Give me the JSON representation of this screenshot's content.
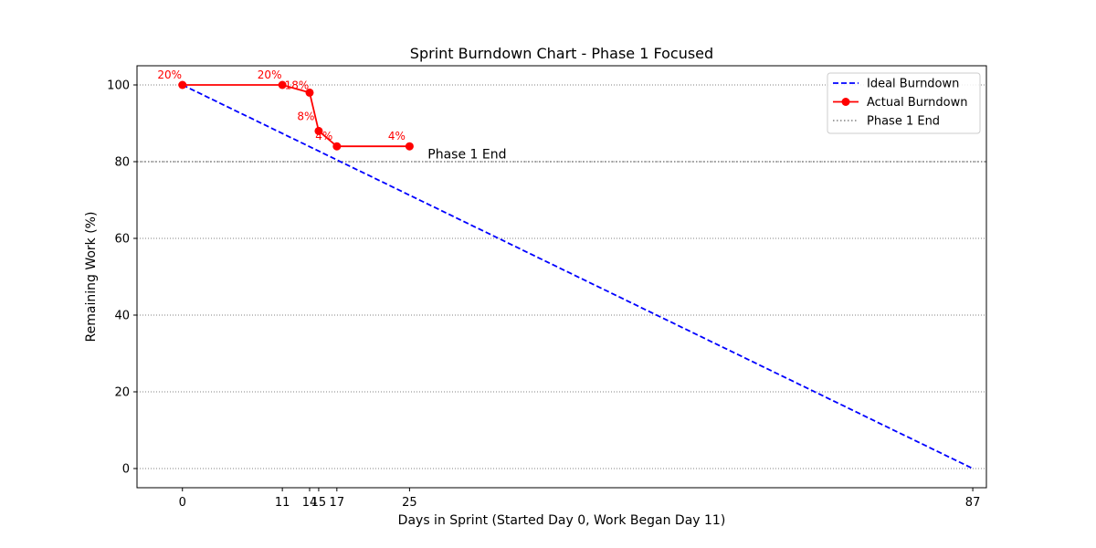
{
  "chart_data": {
    "type": "line",
    "title": "Sprint Burndown Chart - Phase 1 Focused",
    "xlabel": "Days in Sprint (Started Day 0, Work Began Day 11)",
    "ylabel": "Remaining Work (%)",
    "xlim": [
      -5,
      88.5
    ],
    "ylim": [
      -5,
      105
    ],
    "x_ticks": [
      0,
      11,
      14,
      15,
      17,
      25,
      87
    ],
    "y_ticks": [
      0,
      20,
      40,
      60,
      80,
      100
    ],
    "grid": "y-dotted",
    "legend_position": "top-right",
    "series": [
      {
        "name": "Ideal Burndown",
        "style": "dashed",
        "color": "#0000ff",
        "x": [
          0,
          87
        ],
        "y": [
          100,
          0
        ]
      },
      {
        "name": "Actual Burndown",
        "style": "solid-markers",
        "color": "#ff0000",
        "x": [
          0,
          11,
          14,
          15,
          17,
          25
        ],
        "y": [
          100,
          100,
          98,
          88,
          84,
          84
        ],
        "point_labels": [
          "20%",
          "20%",
          "18%",
          "8%",
          "4%",
          "4%"
        ]
      }
    ],
    "reference_lines": [
      {
        "name": "Phase 1 End",
        "orientation": "horizontal",
        "y": 80,
        "style": "dotted",
        "color": "#808080",
        "label": "Phase 1 End",
        "label_x": 27,
        "label_y": 82
      }
    ]
  }
}
